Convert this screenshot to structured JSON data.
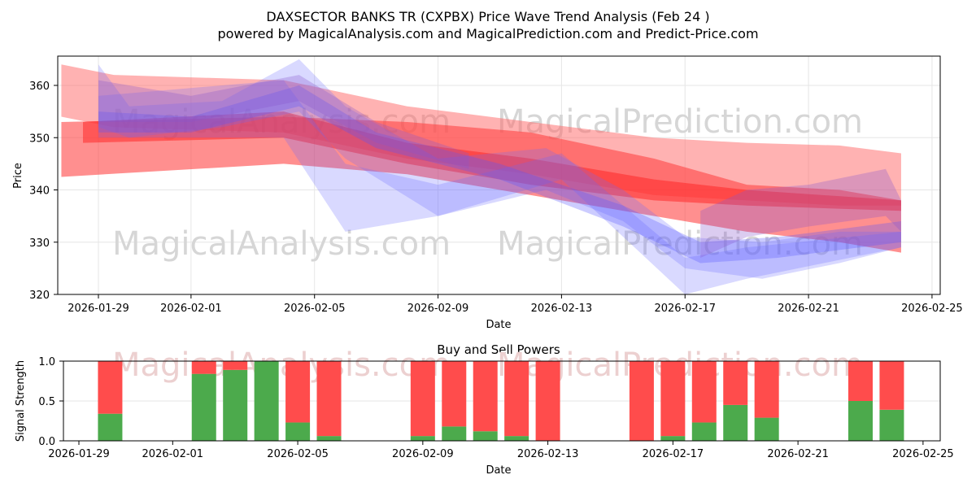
{
  "chart_data": [
    {
      "type": "area",
      "title": "DAXSECTOR BANKS TR (CXPBX) Price Wave Trend Analysis (Feb 24 )",
      "subtitle": "powered by MagicalAnalysis.com and MagicalPrediction.com and Predict-Price.com",
      "xlabel": "Date",
      "ylabel": "Price",
      "ylim": [
        320,
        365.5
      ],
      "yticks": [
        "320",
        "330",
        "340",
        "350",
        "360"
      ],
      "xticks": [
        "2026-01-29",
        "2026-02-01",
        "2026-02-05",
        "2026-02-09",
        "2026-02-13",
        "2026-02-17",
        "2026-02-21",
        "2026-02-25"
      ],
      "x_start": "2026-01-29",
      "watermarks": [
        "MagicalAnalysis.com",
        "MagicalPrediction.com"
      ],
      "grid": true,
      "bands": [
        {
          "name": "red-light",
          "color": "#ff6666",
          "opacity": 0.5,
          "points": [
            [
              -1.2,
              354,
              364
            ],
            [
              0.5,
              352,
              362
            ],
            [
              6,
              351,
              361
            ],
            [
              10,
              346,
              356
            ],
            [
              14,
              343,
              353
            ],
            [
              18,
              339,
              350
            ],
            [
              21,
              338,
              349
            ],
            [
              24,
              337,
              348.5
            ],
            [
              26,
              337,
              347
            ]
          ]
        },
        {
          "name": "red-main",
          "color": "#ff4444",
          "opacity": 0.6,
          "points": [
            [
              -1.2,
              342.5,
              353
            ],
            [
              6,
              345,
              354
            ],
            [
              10,
              343,
              353
            ],
            [
              14,
              339,
              351
            ],
            [
              18,
              335,
              346
            ],
            [
              21,
              332,
              341
            ],
            [
              24,
              330,
              340
            ],
            [
              26,
              328,
              338
            ]
          ]
        },
        {
          "name": "red-core",
          "color": "#ff2020",
          "opacity": 0.5,
          "points": [
            [
              -0.5,
              349,
              353
            ],
            [
              6,
              350,
              355
            ],
            [
              10,
              345,
              349
            ],
            [
              14,
              341,
              346
            ],
            [
              18,
              338,
              342
            ],
            [
              21,
              337,
              340
            ],
            [
              26,
              336,
              338
            ]
          ]
        },
        {
          "name": "blue-1",
          "color": "#6666ff",
          "opacity": 0.25,
          "points": [
            [
              0,
              352,
              364
            ],
            [
              1,
              350,
              356
            ],
            [
              4,
              352,
              357
            ],
            [
              6.5,
              355,
              365
            ],
            [
              8,
              346,
              356
            ],
            [
              11,
              335,
              346
            ],
            [
              14.5,
              340,
              348
            ],
            [
              17,
              334,
              340
            ],
            [
              19,
              325,
              331
            ],
            [
              21.5,
              323,
              330
            ],
            [
              24,
              326,
              332
            ],
            [
              26,
              329,
              332
            ]
          ]
        },
        {
          "name": "blue-2",
          "color": "#6666ff",
          "opacity": 0.25,
          "points": [
            [
              0,
              350,
              358
            ],
            [
              6,
              350,
              361
            ],
            [
              8,
              332,
              345
            ],
            [
              11,
              335,
              341
            ],
            [
              15,
              342,
              347
            ],
            [
              19,
              320,
              327
            ],
            [
              21,
              323,
              329
            ],
            [
              26,
              329,
              332
            ]
          ]
        },
        {
          "name": "blue-3",
          "color": "#5555ff",
          "opacity": 0.3,
          "points": [
            [
              0,
              351,
              355
            ],
            [
              3,
              351,
              354
            ],
            [
              6.5,
              356,
              360
            ],
            [
              9,
              348,
              351
            ],
            [
              13,
              342,
              345
            ],
            [
              17,
              333,
              337
            ],
            [
              19.5,
              326,
              330
            ],
            [
              22,
              327,
              331
            ],
            [
              26,
              330,
              334
            ]
          ]
        },
        {
          "name": "purple-1",
          "color": "#8855cc",
          "opacity": 0.3,
          "points": [
            [
              19.5,
              327,
              336
            ],
            [
              21,
              331,
              340
            ],
            [
              23,
              333,
              341
            ],
            [
              25.5,
              335,
              344
            ],
            [
              26,
              332,
              338
            ]
          ]
        },
        {
          "name": "purple-2",
          "color": "#8855cc",
          "opacity": 0.3,
          "points": [
            [
              0,
              353,
              361
            ],
            [
              3,
              353,
              358
            ],
            [
              6.5,
              357,
              362
            ],
            [
              9,
              349,
              353
            ],
            [
              12,
              344,
              347
            ]
          ]
        }
      ]
    },
    {
      "type": "bar",
      "title": "Buy and Sell Powers",
      "xlabel": "Date",
      "ylabel": "Signal Strength",
      "ylim": [
        0,
        1
      ],
      "yticks": [
        "0.0",
        "0.5",
        "1.0"
      ],
      "xticks": [
        "2026-01-29",
        "2026-02-01",
        "2026-02-05",
        "2026-02-09",
        "2026-02-13",
        "2026-02-17",
        "2026-02-21",
        "2026-02-25"
      ],
      "categories": [
        "2026-01-30",
        "2026-02-02",
        "2026-02-03",
        "2026-02-04",
        "2026-02-05",
        "2026-02-06",
        "2026-02-09",
        "2026-02-10",
        "2026-02-11",
        "2026-02-12",
        "2026-02-13",
        "2026-02-16",
        "2026-02-17",
        "2026-02-18",
        "2026-02-19",
        "2026-02-20",
        "2026-02-23",
        "2026-02-24"
      ],
      "day_offsets": [
        1,
        4,
        5,
        6,
        7,
        8,
        11,
        12,
        13,
        14,
        15,
        18,
        19,
        20,
        21,
        22,
        25,
        26
      ],
      "series": [
        {
          "name": "Buy",
          "color": "#4caa4c",
          "values": [
            0.34,
            0.84,
            0.89,
            1.0,
            0.23,
            0.06,
            0.06,
            0.18,
            0.12,
            0.06,
            0,
            0,
            0.06,
            0.23,
            0.45,
            0.29,
            0.5,
            0.39
          ]
        },
        {
          "name": "Sell",
          "color": "#ff4c4c",
          "values": [
            0.66,
            0.16,
            0.11,
            0,
            0.77,
            0.94,
            0.94,
            0.82,
            0.88,
            0.94,
            1,
            1,
            0.94,
            0.77,
            0.55,
            0.71,
            0.5,
            0.61
          ]
        }
      ]
    }
  ]
}
